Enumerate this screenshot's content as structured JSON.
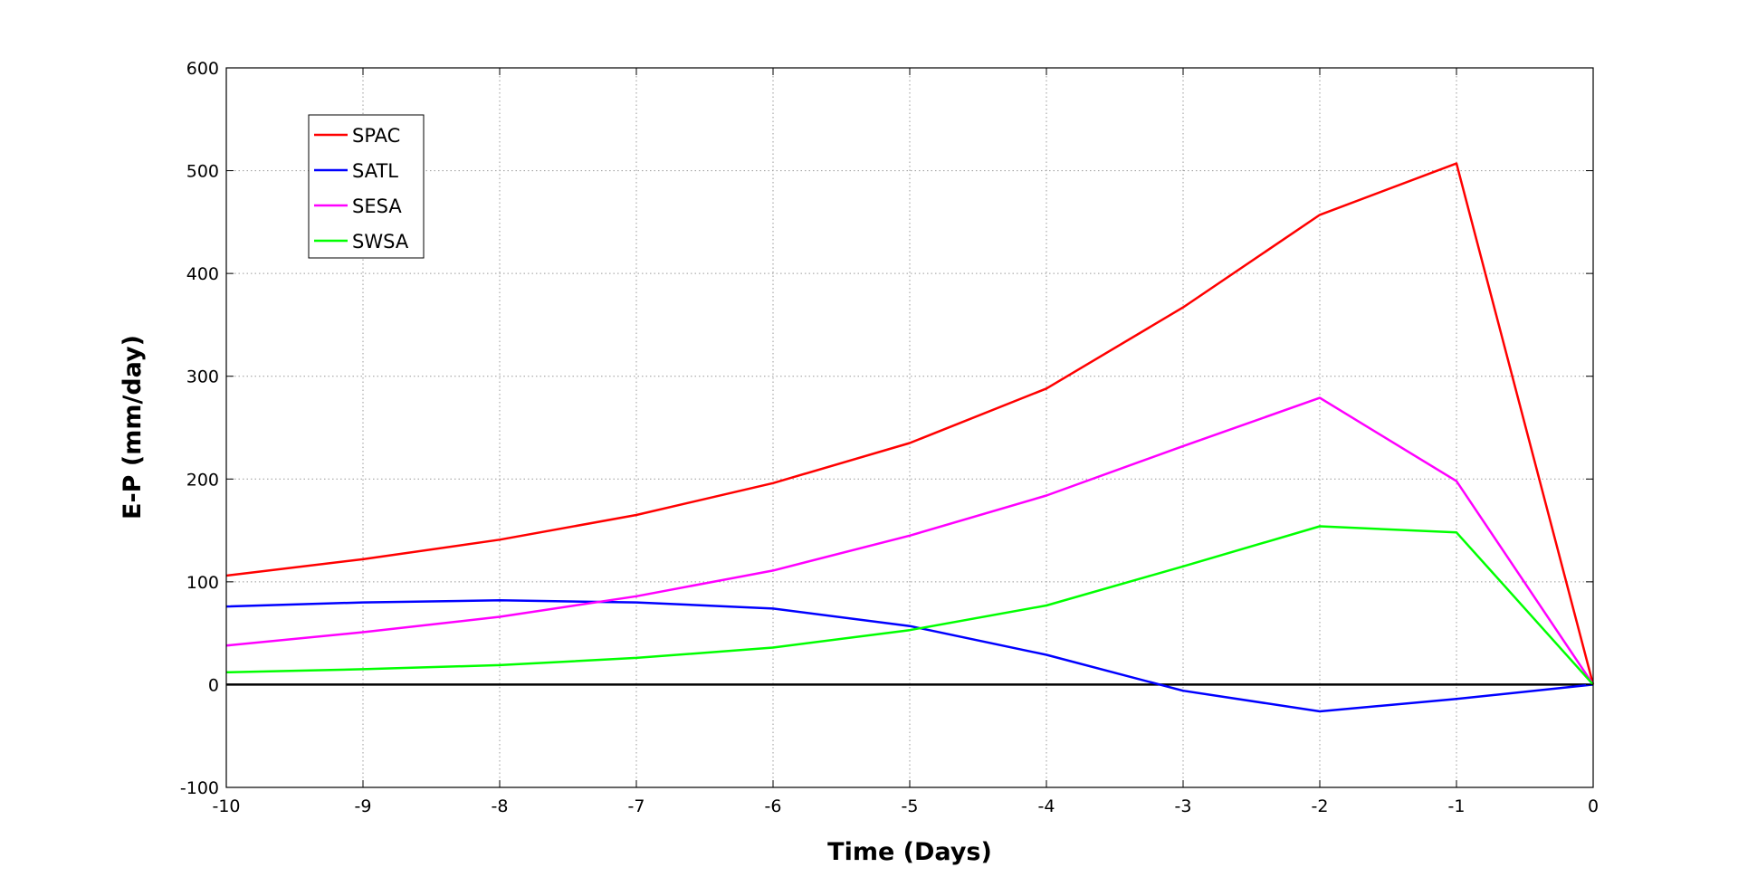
{
  "chart_data": {
    "type": "line",
    "title": "",
    "xlabel": "Time (Days)",
    "ylabel": "E-P (mm/day)",
    "xlim": [
      -10,
      0
    ],
    "ylim": [
      -100,
      600
    ],
    "x_ticks": [
      -10,
      -9,
      -8,
      -7,
      -6,
      -5,
      -4,
      -3,
      -2,
      -1,
      0
    ],
    "y_ticks": [
      -100,
      0,
      100,
      200,
      300,
      400,
      500,
      600
    ],
    "grid": true,
    "grid_style": "dotted",
    "legend_position": "top-left",
    "zero_line": true,
    "x": [
      -10,
      -9,
      -8,
      -7,
      -6,
      -5,
      -4,
      -3,
      -2,
      -1,
      0
    ],
    "series": [
      {
        "name": "SPAC",
        "color": "#ff0000",
        "values": [
          106,
          122,
          141,
          165,
          196,
          235,
          288,
          367,
          457,
          507,
          0
        ]
      },
      {
        "name": "SATL",
        "color": "#0000ff",
        "values": [
          76,
          80,
          82,
          80,
          74,
          57,
          29,
          -6,
          -26,
          -14,
          0
        ]
      },
      {
        "name": "SESA",
        "color": "#ff00ff",
        "values": [
          38,
          51,
          66,
          86,
          111,
          145,
          184,
          232,
          279,
          198,
          0
        ]
      },
      {
        "name": "SWSA",
        "color": "#00ff00",
        "values": [
          12,
          15,
          19,
          26,
          36,
          53,
          77,
          115,
          154,
          148,
          0
        ]
      }
    ]
  }
}
